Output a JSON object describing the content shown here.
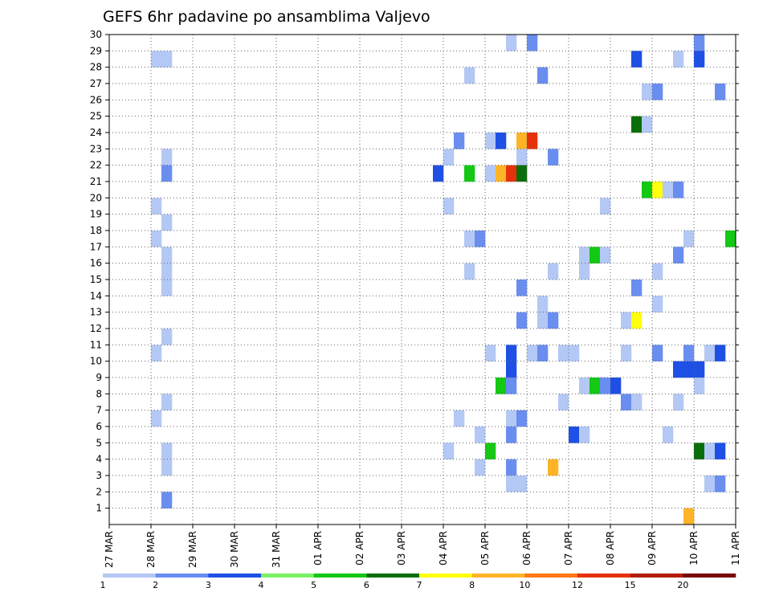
{
  "chart_data": {
    "type": "heatmap",
    "title": "GEFS 6hr padavine po ansamblima Valjevo",
    "xlabel": "",
    "ylabel": "",
    "x_ticks": [
      "27 MAR",
      "28 MAR",
      "29 MAR",
      "30 MAR",
      "31 MAR",
      "01 APR",
      "02 APR",
      "03 APR",
      "04 APR",
      "05 APR",
      "06 APR",
      "07 APR",
      "08 APR",
      "09 APR",
      "10 APR",
      "11 APR"
    ],
    "y_ticks": [
      1,
      2,
      3,
      4,
      5,
      6,
      7,
      8,
      9,
      10,
      11,
      12,
      13,
      14,
      15,
      16,
      17,
      18,
      19,
      20,
      21,
      22,
      23,
      24,
      25,
      26,
      27,
      28,
      29,
      30
    ],
    "grid": true,
    "x_range": [
      0,
      60
    ],
    "y_range": [
      0,
      30
    ],
    "colorbar": {
      "boundaries": [
        "1",
        "2",
        "3",
        "4",
        "5",
        "6",
        "7",
        "8",
        "10",
        "12",
        "15",
        "20"
      ],
      "colors": [
        "#b4c8f5",
        "#6a8ef0",
        "#1e50e6",
        "#78f064",
        "#14c814",
        "#0a6e0a",
        "#ffff0f",
        "#ffb428",
        "#ff7814",
        "#e6320a",
        "#b41e0a",
        "#780a0a"
      ]
    },
    "cells": [
      [
        4,
        28,
        0
      ],
      [
        5,
        28,
        0
      ],
      [
        5,
        22,
        0
      ],
      [
        5,
        21,
        1
      ],
      [
        4,
        19,
        0
      ],
      [
        5,
        18,
        0
      ],
      [
        4,
        17,
        0
      ],
      [
        5,
        16,
        0
      ],
      [
        5,
        15,
        0
      ],
      [
        5,
        14,
        0
      ],
      [
        5,
        11,
        0
      ],
      [
        4,
        10,
        0
      ],
      [
        5,
        7,
        0
      ],
      [
        4,
        6,
        0
      ],
      [
        5,
        4,
        0
      ],
      [
        5,
        3,
        0
      ],
      [
        5,
        1,
        1
      ],
      [
        31,
        21,
        2
      ],
      [
        32,
        4,
        0
      ],
      [
        32,
        22,
        0
      ],
      [
        32,
        19,
        0
      ],
      [
        33,
        23,
        1
      ],
      [
        33,
        6,
        0
      ],
      [
        34,
        27,
        0
      ],
      [
        34,
        21,
        4
      ],
      [
        34,
        17,
        0
      ],
      [
        34,
        15,
        0
      ],
      [
        35,
        17,
        1
      ],
      [
        35,
        5,
        0
      ],
      [
        35,
        3,
        0
      ],
      [
        36,
        23,
        0
      ],
      [
        36,
        21,
        0
      ],
      [
        36,
        10,
        0
      ],
      [
        36,
        4,
        4
      ],
      [
        37,
        23,
        2
      ],
      [
        37,
        21,
        7
      ],
      [
        37,
        8,
        4
      ],
      [
        38,
        29,
        0
      ],
      [
        38,
        21,
        9
      ],
      [
        38,
        10,
        2
      ],
      [
        38,
        9,
        2
      ],
      [
        38,
        8,
        1
      ],
      [
        38,
        6,
        0
      ],
      [
        38,
        5,
        1
      ],
      [
        38,
        3,
        1
      ],
      [
        38,
        2,
        0
      ],
      [
        39,
        23,
        7
      ],
      [
        39,
        22,
        0
      ],
      [
        39,
        21,
        5
      ],
      [
        39,
        14,
        1
      ],
      [
        39,
        12,
        1
      ],
      [
        39,
        6,
        1
      ],
      [
        39,
        2,
        0
      ],
      [
        40,
        29,
        1
      ],
      [
        40,
        23,
        9
      ],
      [
        40,
        10,
        0
      ],
      [
        41,
        27,
        1
      ],
      [
        41,
        13,
        0
      ],
      [
        41,
        12,
        0
      ],
      [
        41,
        10,
        1
      ],
      [
        42,
        22,
        1
      ],
      [
        42,
        15,
        0
      ],
      [
        42,
        12,
        1
      ],
      [
        42,
        3,
        7
      ],
      [
        43,
        10,
        0
      ],
      [
        43,
        7,
        0
      ],
      [
        44,
        5,
        2
      ],
      [
        44,
        10,
        0
      ],
      [
        45,
        16,
        0
      ],
      [
        45,
        15,
        0
      ],
      [
        45,
        8,
        0
      ],
      [
        45,
        5,
        0
      ],
      [
        46,
        16,
        4
      ],
      [
        46,
        8,
        4
      ],
      [
        47,
        19,
        0
      ],
      [
        47,
        16,
        0
      ],
      [
        47,
        8,
        1
      ],
      [
        48,
        8,
        2
      ],
      [
        49,
        12,
        0
      ],
      [
        49,
        10,
        0
      ],
      [
        49,
        7,
        1
      ],
      [
        50,
        28,
        2
      ],
      [
        50,
        24,
        5
      ],
      [
        50,
        14,
        1
      ],
      [
        50,
        12,
        6
      ],
      [
        50,
        7,
        0
      ],
      [
        51,
        26,
        0
      ],
      [
        51,
        24,
        0
      ],
      [
        51,
        20,
        4
      ],
      [
        52,
        26,
        1
      ],
      [
        52,
        20,
        6
      ],
      [
        52,
        15,
        0
      ],
      [
        52,
        13,
        0
      ],
      [
        52,
        10,
        1
      ],
      [
        53,
        20,
        0
      ],
      [
        53,
        5,
        0
      ],
      [
        54,
        28,
        0
      ],
      [
        54,
        20,
        1
      ],
      [
        54,
        16,
        1
      ],
      [
        54,
        9,
        2
      ],
      [
        54,
        7,
        0
      ],
      [
        55,
        17,
        0
      ],
      [
        55,
        9,
        2
      ],
      [
        55,
        10,
        1
      ],
      [
        55,
        0,
        7
      ],
      [
        56,
        29,
        1
      ],
      [
        56,
        28,
        2
      ],
      [
        56,
        9,
        2
      ],
      [
        56,
        8,
        0
      ],
      [
        56,
        4,
        5
      ],
      [
        57,
        10,
        0
      ],
      [
        57,
        4,
        0
      ],
      [
        57,
        2,
        0
      ],
      [
        58,
        26,
        1
      ],
      [
        58,
        10,
        2
      ],
      [
        58,
        4,
        2
      ],
      [
        58,
        2,
        1
      ],
      [
        59,
        17,
        4
      ]
    ]
  }
}
